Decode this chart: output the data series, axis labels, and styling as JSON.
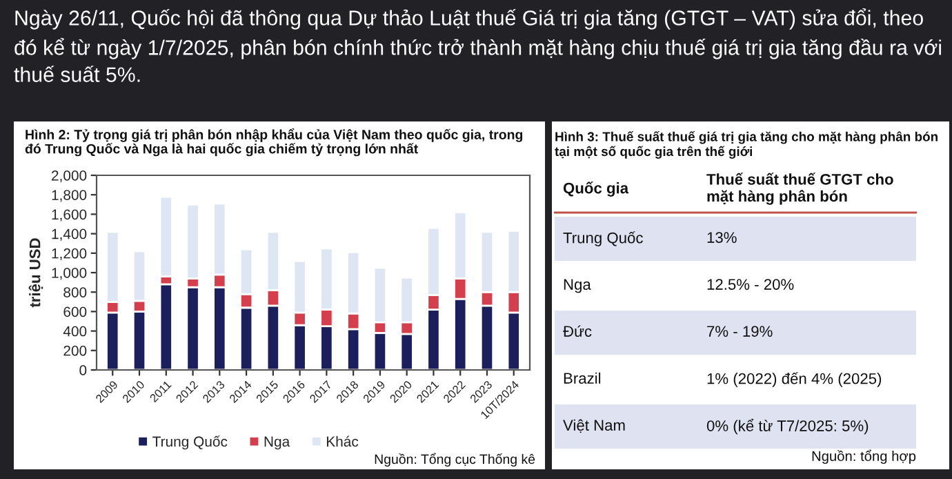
{
  "chart_data": [
    {
      "type": "bar",
      "stacked": true,
      "title": "Hình 2: Tỷ trọng giá trị phân bón nhập khẩu của Việt Nam theo quốc gia, trong đó Trung Quốc và Nga là hai quốc gia chiếm tỷ trọng lớn nhất",
      "ylabel": "triệu USD",
      "categories": [
        "2009",
        "2010",
        "2011",
        "2012",
        "2013",
        "2014",
        "2015",
        "2016",
        "2017",
        "2018",
        "2019",
        "2020",
        "2021",
        "2022",
        "2023",
        "10T/2024"
      ],
      "series": [
        {
          "name": "Trung Quốc",
          "color": "#1b1f5c",
          "values": [
            590,
            600,
            880,
            850,
            850,
            640,
            660,
            460,
            450,
            420,
            380,
            370,
            620,
            730,
            660,
            590
          ]
        },
        {
          "name": "Nga",
          "color": "#d43f4e",
          "values": [
            110,
            110,
            80,
            90,
            130,
            140,
            160,
            130,
            170,
            160,
            110,
            120,
            150,
            210,
            140,
            210
          ]
        },
        {
          "name": "Khác",
          "color": "#dde6f2",
          "values": [
            720,
            510,
            820,
            760,
            730,
            460,
            600,
            530,
            630,
            630,
            560,
            460,
            690,
            680,
            620,
            630
          ]
        }
      ],
      "ylim": [
        0,
        2000
      ],
      "yticks": [
        0,
        200,
        400,
        600,
        800,
        {
          "value": 1000,
          "label": "1,000"
        },
        {
          "value": 1200,
          "label": "1,200"
        },
        {
          "value": 1400,
          "label": "1,400"
        },
        {
          "value": 1600,
          "label": "1,600"
        },
        {
          "value": 1800,
          "label": "1,800"
        },
        {
          "value": 2000,
          "label": "2,000"
        }
      ],
      "grid": false,
      "legend": "bottom",
      "annotations": [
        "Ngày 26/11, Quốc hội đã thông qua Dự thảo Luật thuế Giá trị gia tăng (GTGT – VAT) sửa đổi, theo đó kể từ ngày 1/7/2025, phân bón chính thức trở thành mặt hàng chịu thuế giá trị gia tăng đầu ra với thuế suất 5%.",
        "Nguồn: Tổng cục Thống kê"
      ]
    },
    {
      "type": "other",
      "title": "Hình 3: Thuế suất thuế giá trị gia tăng cho mặt hàng phân bón tại một số quốc gia trên thế giới",
      "categories": [
        "Trung Quốc",
        "Nga",
        "Đức",
        "Brazil",
        "Việt Nam"
      ],
      "value_labels": [
        "13%",
        "12.5% - 20%",
        "7% - 19%",
        "1% (2022) đến 4% (2025)",
        "0% (kể từ T7/2025: 5%)"
      ],
      "annotations": [
        "Quốc gia",
        "Thuế suất thuế GTGT cho mặt hàng phân bón",
        "Nguồn: tổng hợp"
      ]
    }
  ]
}
